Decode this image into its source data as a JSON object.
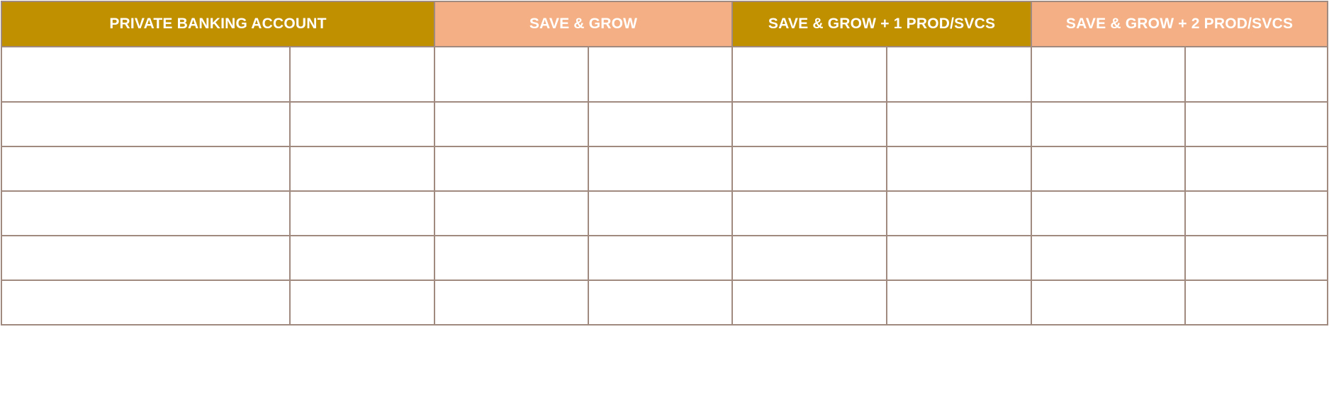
{
  "table": {
    "headers": [
      {
        "label": "PRIVATE BANKING ACCOUNT",
        "color": "#c09000"
      },
      {
        "label": "SAVE & GROW",
        "color": "#f4b084"
      },
      {
        "label": "SAVE & GROW + 1 PROD/SVCS",
        "color": "#c09000"
      },
      {
        "label": "SAVE & GROW + 2 PROD/SVCS",
        "color": "#f4b084"
      }
    ],
    "border_color": "#a08a80",
    "row_count": 6,
    "column_count": 8
  }
}
